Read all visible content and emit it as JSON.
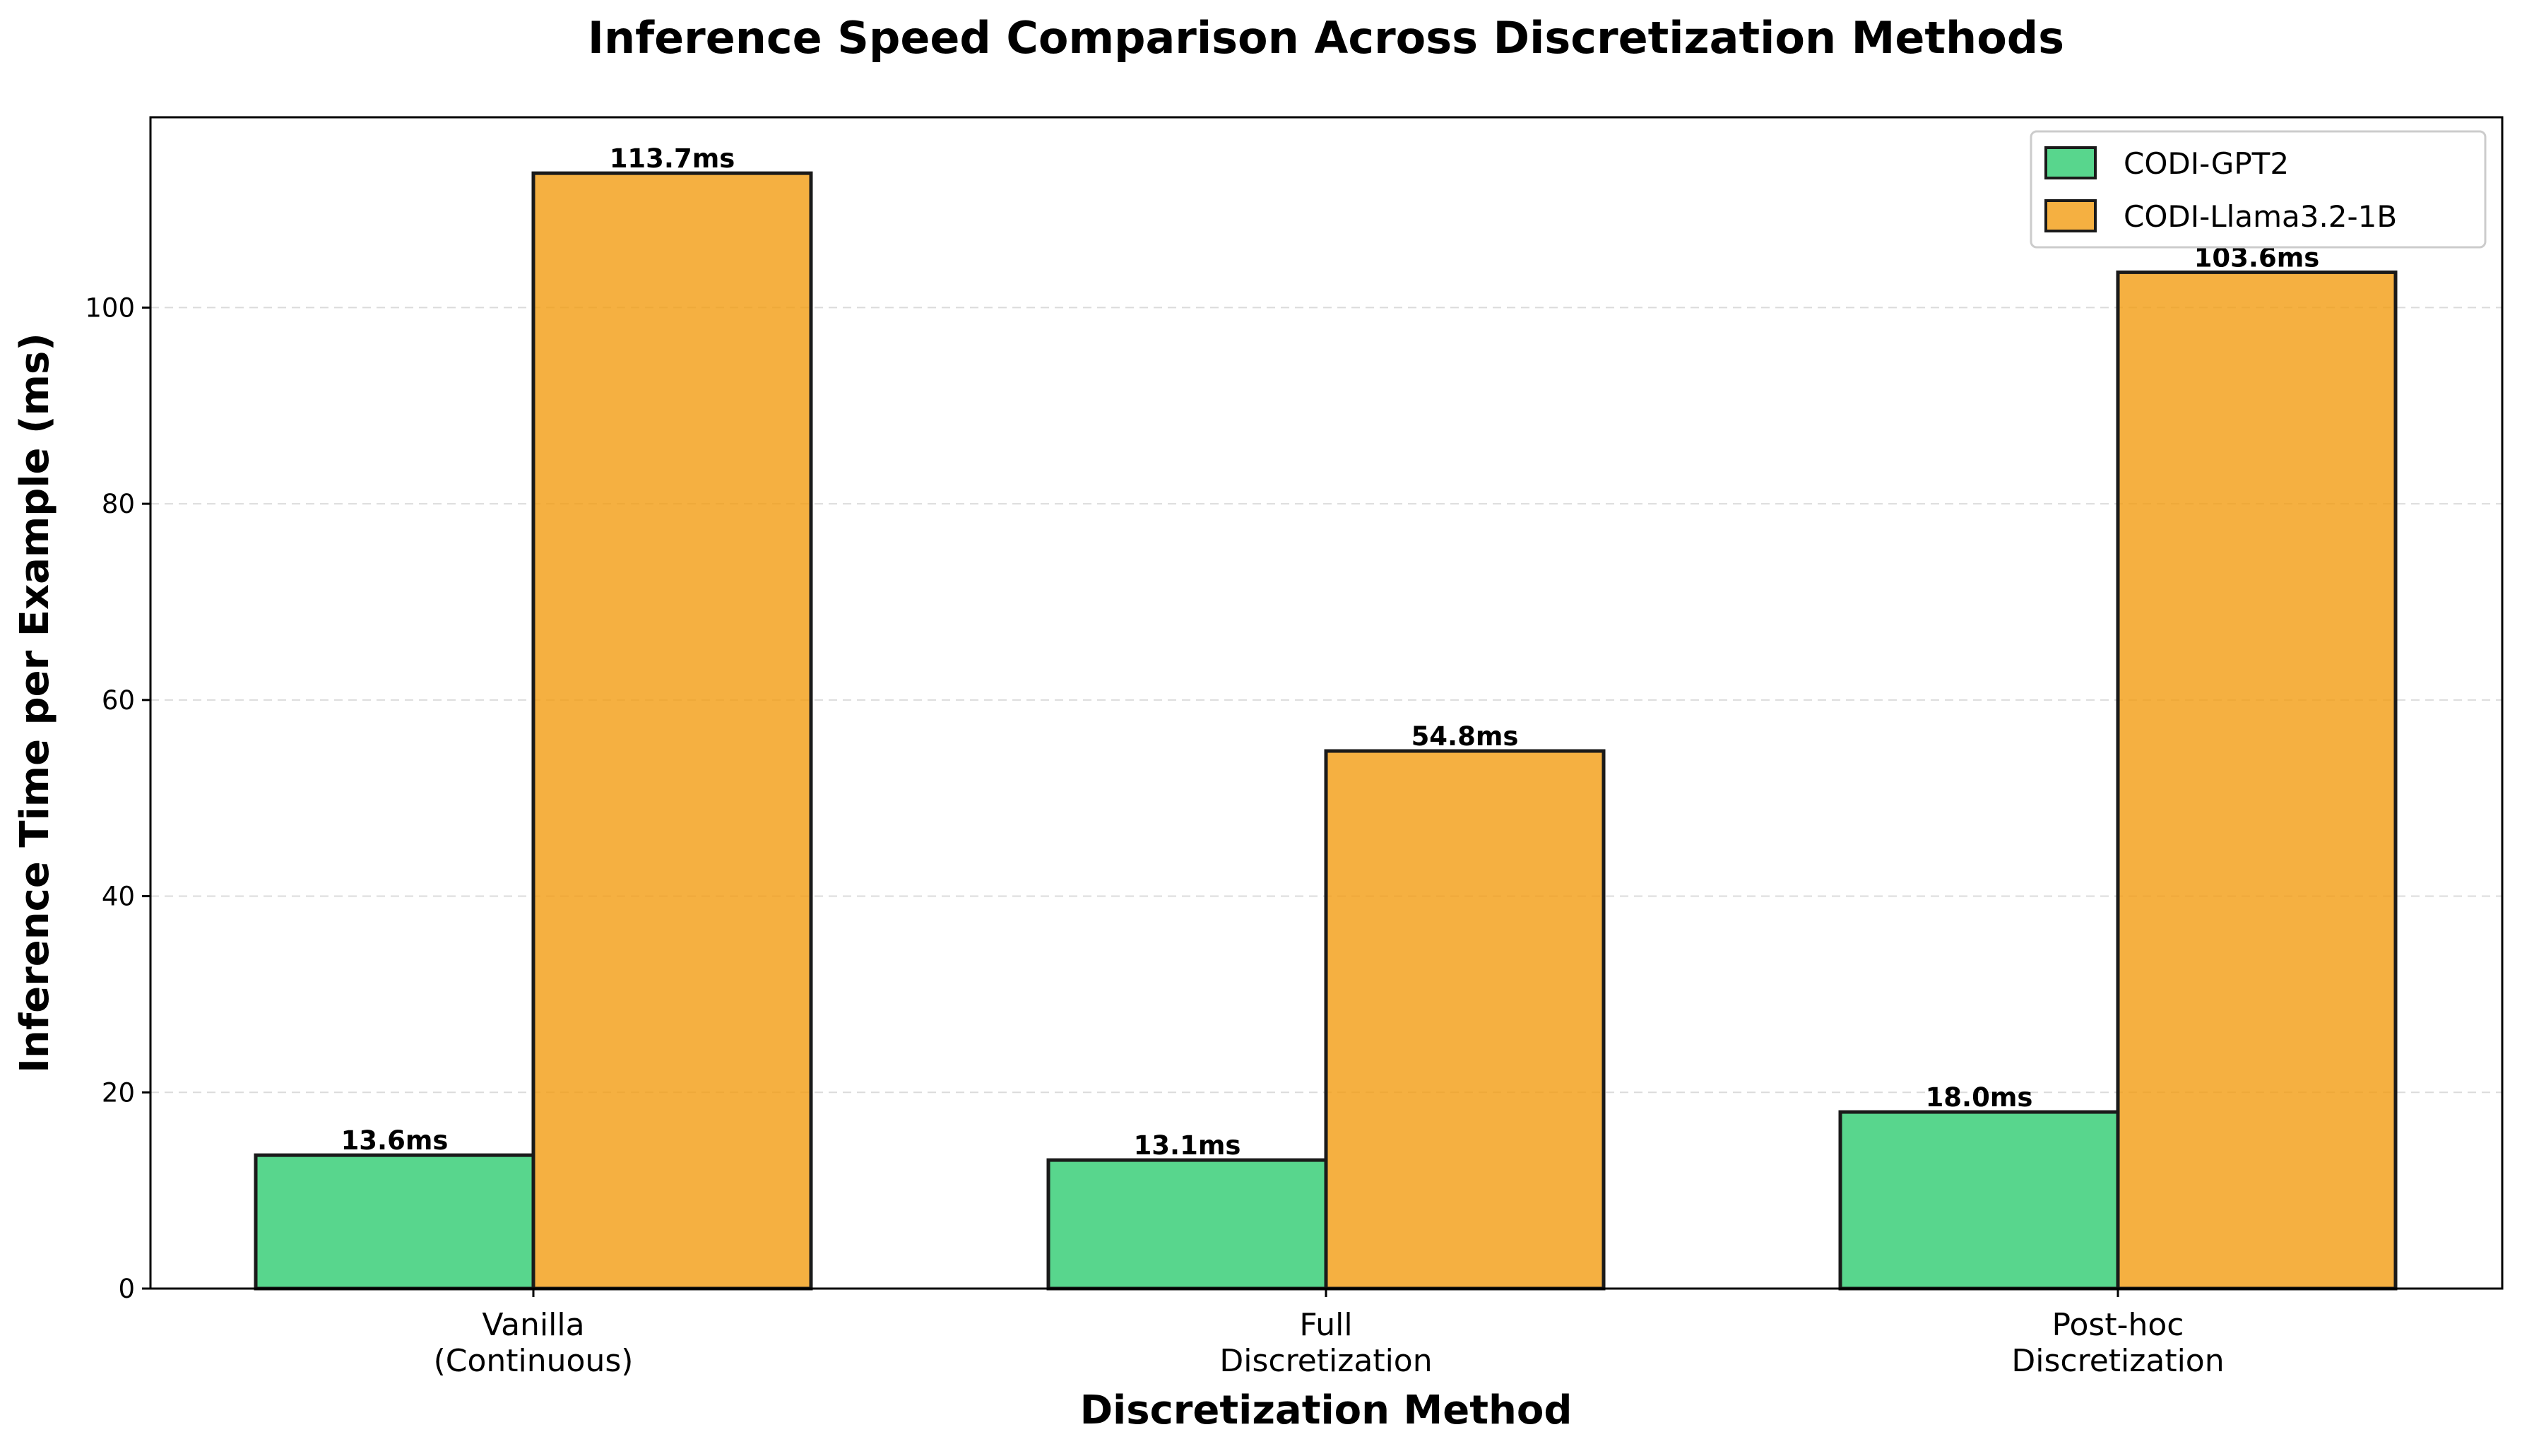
{
  "chart_data": {
    "type": "bar",
    "title": "Inference Speed Comparison Across Discretization Methods",
    "xlabel": "Discretization Method",
    "ylabel": "Inference Time per Example (ms)",
    "categories": [
      [
        "Vanilla",
        "(Continuous)"
      ],
      [
        "Full",
        "Discretization"
      ],
      [
        "Post-hoc",
        "Discretization"
      ]
    ],
    "series": [
      {
        "name": "CODI-GPT2",
        "color": "#2ecc71",
        "values": [
          13.6,
          13.1,
          18.0
        ],
        "labels": [
          "13.6ms",
          "13.1ms",
          "18.0ms"
        ]
      },
      {
        "name": "CODI-Llama3.2-1B",
        "color": "#f39c12",
        "values": [
          113.7,
          54.8,
          103.6
        ],
        "labels": [
          "113.7ms",
          "54.8ms",
          "103.6ms"
        ]
      }
    ],
    "ylim": [
      0,
      119.4
    ],
    "yticks": [
      0,
      20,
      40,
      60,
      80,
      100
    ],
    "grid": "y-dashed",
    "legend_position": "top-right"
  }
}
